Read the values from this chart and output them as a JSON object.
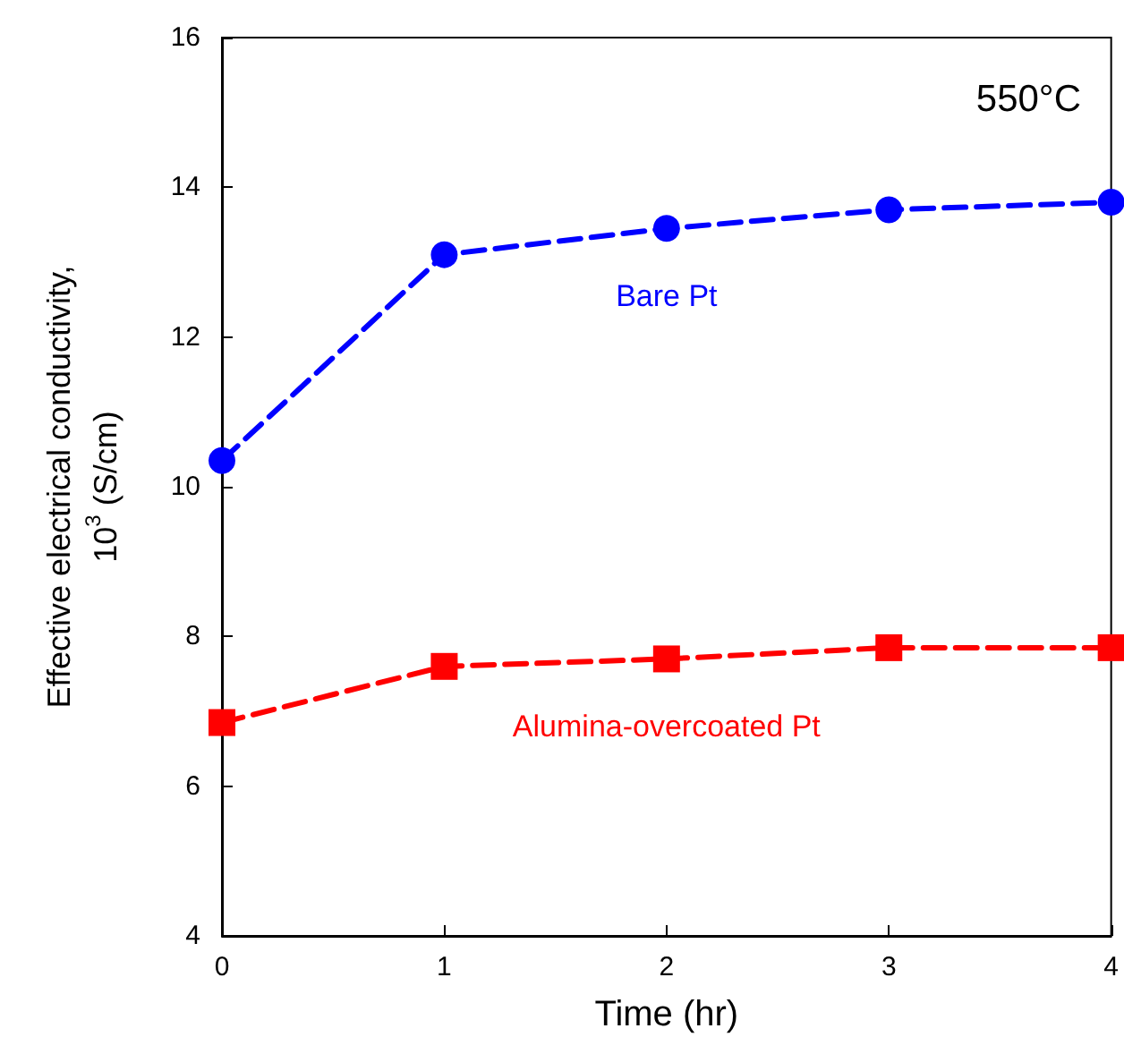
{
  "chart_data": {
    "type": "line",
    "xlabel": "Time (hr)",
    "ylabel": "Effective electrical conductivity,\n10$^{3}$ (S/cm)",
    "x": [
      0,
      1,
      2,
      3,
      4
    ],
    "series": [
      {
        "name": "Bare Pt",
        "color": "#0000ff",
        "marker": "circle",
        "values": [
          10.35,
          13.1,
          13.45,
          13.7,
          13.8
        ]
      },
      {
        "name": "Alumina-overcoated Pt",
        "color": "#ff0000",
        "marker": "square",
        "values": [
          6.85,
          7.6,
          7.7,
          7.85,
          7.85
        ]
      }
    ],
    "xlim": [
      0,
      4
    ],
    "xticks": [
      0,
      1,
      2,
      3,
      4
    ],
    "ylim": [
      4,
      16
    ],
    "yticks": [
      4,
      6,
      8,
      10,
      12,
      14,
      16
    ],
    "line_style": "dashed",
    "grid": false,
    "legend": false,
    "annotations": [
      "550°C"
    ]
  }
}
